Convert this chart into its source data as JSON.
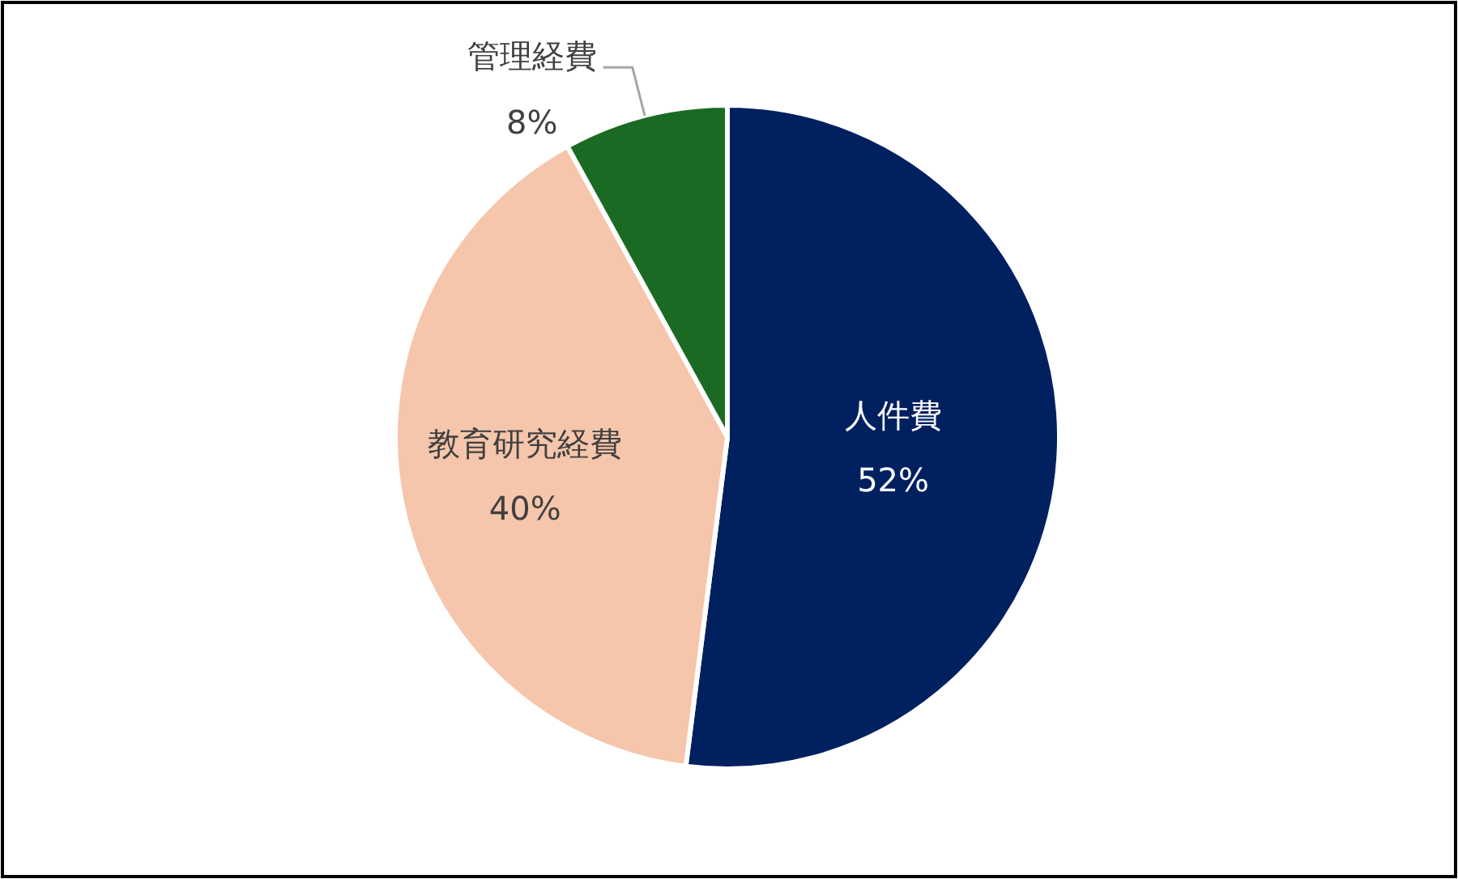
{
  "chart_data": {
    "type": "pie",
    "categories": [
      "人件費",
      "教育研究経費",
      "管理経費"
    ],
    "values": [
      52,
      40,
      8
    ],
    "value_labels": [
      "52%",
      "40%",
      "8%"
    ],
    "colors": [
      "#002060",
      "#f5c6ab",
      "#1b6a24"
    ]
  }
}
